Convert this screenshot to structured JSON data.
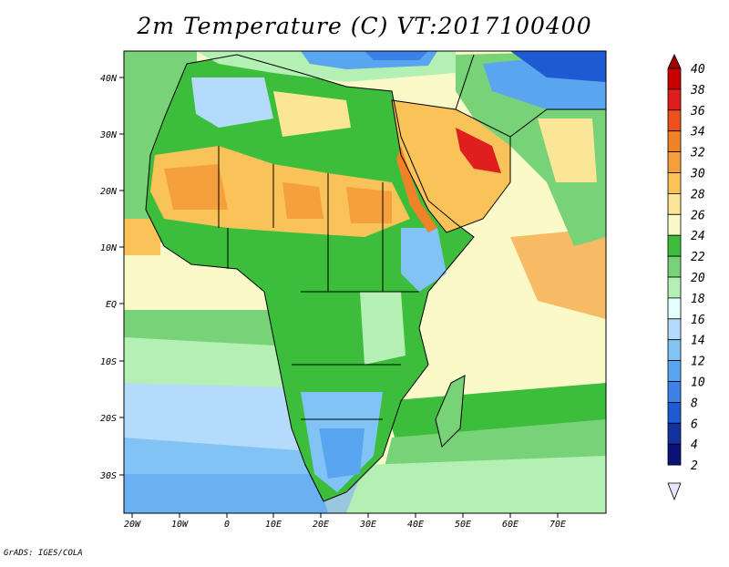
{
  "title": "2m Temperature (C) VT:2017100400",
  "credit": "GrADS: IGES/COLA",
  "map": {
    "region": "Africa and Middle East",
    "lon_range": [
      -23,
      80
    ],
    "lat_range": [
      -36,
      46
    ],
    "lon_ticks": [
      "20W",
      "10W",
      "0",
      "10E",
      "20E",
      "30E",
      "40E",
      "50E",
      "60E",
      "70E"
    ],
    "lat_ticks": [
      "40N",
      "30N",
      "20N",
      "10N",
      "EQ",
      "10S",
      "20S",
      "30S"
    ]
  },
  "colorbar": {
    "labels": [
      "40",
      "38",
      "36",
      "34",
      "32",
      "30",
      "28",
      "26",
      "24",
      "22",
      "20",
      "18",
      "16",
      "14",
      "12",
      "10",
      "8",
      "6",
      "4",
      "2"
    ],
    "colors": {
      "c40": "#a00000",
      "c38": "#c80000",
      "c36": "#e11e1e",
      "c34": "#f0501e",
      "c32": "#f08228",
      "c30": "#f5a03c",
      "c28": "#fac35a",
      "c26": "#fae696",
      "c24": "#fafac8",
      "c22": "#3cbe3c",
      "c20": "#78d278",
      "c18": "#b4f0b4",
      "c16": "#e6ffff",
      "c14": "#b4dcfa",
      "c12": "#82c3f5",
      "c10": "#5aa5f0",
      "c8": "#3c82e6",
      "c6": "#1e5ad2",
      "c4": "#1432a0",
      "c2": "#0a1478",
      "cmin": "#e6e6ff"
    }
  }
}
